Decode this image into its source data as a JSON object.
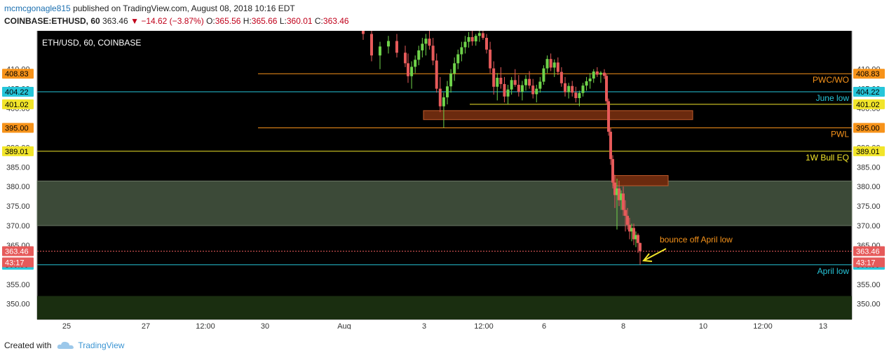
{
  "header": {
    "user": "mcmcgonagle815",
    "published_text": "published on TradingView.com, August 08, 2018 10:16 EDT",
    "symbol": "COINBASE:ETHUSD, 60",
    "last": "363.46",
    "change": "−14.62 (−3.87%)",
    "o_label": "O:",
    "o": "365.56",
    "h_label": "H:",
    "h": "365.66",
    "l_label": "L:",
    "l": "360.01",
    "c_label": "C:",
    "c": "363.46"
  },
  "footer": {
    "created_with": "Created with",
    "brand": "TradingView",
    "logo_icon": "cloud-icon"
  },
  "colors": {
    "background": "#000000",
    "orange_level": "#f7931a",
    "cyan_level": "#26c6da",
    "yellow_level": "#f2e52a",
    "zone_fill": "#3c4a38",
    "bottom_zone_fill": "#1a2e10",
    "supply_box": "#6b2a0e",
    "candle_up": "#6fd34a",
    "candle_down": "#e65a5a"
  },
  "chart_data": {
    "type": "candlestick",
    "title": "ETH/USD, 60, COINBASE",
    "ylim": [
      346,
      419.8
    ],
    "y_ticks": [
      350,
      355,
      360,
      365,
      370,
      375,
      380,
      385,
      390,
      395,
      400,
      405,
      410
    ],
    "x_ticks": [
      "25",
      "27",
      "12:00",
      "30",
      "Aug",
      "3",
      "12:00",
      "6",
      "8",
      "10",
      "12:00",
      "13"
    ],
    "current_price": "363.46",
    "countdown": "43:17",
    "levels": [
      {
        "label": "PWC/WO",
        "price": 408.83,
        "price_label": "408.83",
        "color": "orange"
      },
      {
        "label": "June low",
        "price": 404.22,
        "price_label": "404.22",
        "color": "cyan"
      },
      {
        "label": "",
        "price": 401.02,
        "price_label": "401.02",
        "color": "yellow"
      },
      {
        "label": "PWL",
        "price": 395.0,
        "price_label": "395.00",
        "color": "orange"
      },
      {
        "label": "1W Bull EQ",
        "price": 389.01,
        "price_label": "389.01",
        "color": "yellow"
      },
      {
        "label": "April low",
        "price": 360.0,
        "price_label": "360.00",
        "color": "cyan"
      }
    ],
    "zones": [
      {
        "from": 370.0,
        "to": 381.4,
        "kind": "range"
      },
      {
        "from": 345.2,
        "to": 352.0,
        "kind": "bottom"
      }
    ],
    "supply_boxes": [
      {
        "from": 397.1,
        "to": 399.4
      },
      {
        "from": 380.2,
        "to": 382.8
      }
    ],
    "annotation": "bounce off April low",
    "candles": [
      [
        420.0,
        421.0,
        417.5,
        419.0
      ],
      [
        419.0,
        420.5,
        412.0,
        413.5
      ],
      [
        413.5,
        417.0,
        410.0,
        415.8
      ],
      [
        415.8,
        418.5,
        414.0,
        417.2
      ],
      [
        417.2,
        419.0,
        413.0,
        414.2
      ],
      [
        414.2,
        416.0,
        410.5,
        411.5
      ],
      [
        411.5,
        414.0,
        406.5,
        408.2
      ],
      [
        408.2,
        412.0,
        405.0,
        410.6
      ],
      [
        410.6,
        413.5,
        409.0,
        412.4
      ],
      [
        412.4,
        416.0,
        411.0,
        414.8
      ],
      [
        414.8,
        418.0,
        413.0,
        416.5
      ],
      [
        416.5,
        419.0,
        413.5,
        417.8
      ],
      [
        417.8,
        420.0,
        415.0,
        416.0
      ],
      [
        416.0,
        418.0,
        411.0,
        412.2
      ],
      [
        412.2,
        414.0,
        404.0,
        405.0
      ],
      [
        405.0,
        408.0,
        399.0,
        400.5
      ],
      [
        400.5,
        404.0,
        395.0,
        402.8
      ],
      [
        402.8,
        407.0,
        401.0,
        405.6
      ],
      [
        405.6,
        410.0,
        404.0,
        408.9
      ],
      [
        408.9,
        413.0,
        407.0,
        411.5
      ],
      [
        411.5,
        415.0,
        410.0,
        413.8
      ],
      [
        413.8,
        417.0,
        412.0,
        415.6
      ],
      [
        415.6,
        418.5,
        414.0,
        417.0
      ],
      [
        417.0,
        419.5,
        415.5,
        418.2
      ],
      [
        418.2,
        420.0,
        416.0,
        417.1
      ],
      [
        417.1,
        419.0,
        416.0,
        418.5
      ],
      [
        418.5,
        420.0,
        417.0,
        419.2
      ],
      [
        419.2,
        420.5,
        417.5,
        418.0
      ],
      [
        418.0,
        419.0,
        414.0,
        415.0
      ],
      [
        415.0,
        417.0,
        409.0,
        410.2
      ],
      [
        410.2,
        412.0,
        403.5,
        405.5
      ],
      [
        405.5,
        409.0,
        402.0,
        407.8
      ],
      [
        407.8,
        410.5,
        405.0,
        406.2
      ],
      [
        406.2,
        408.0,
        401.5,
        403.0
      ],
      [
        403.0,
        406.0,
        401.0,
        404.8
      ],
      [
        404.8,
        408.0,
        403.5,
        407.2
      ],
      [
        407.2,
        410.0,
        405.5,
        406.0
      ],
      [
        406.0,
        408.5,
        403.0,
        404.2
      ],
      [
        404.2,
        407.0,
        402.0,
        405.9
      ],
      [
        405.9,
        408.5,
        404.5,
        407.5
      ],
      [
        407.5,
        409.5,
        405.0,
        405.8
      ],
      [
        405.8,
        407.5,
        402.5,
        403.6
      ],
      [
        403.6,
        406.0,
        401.5,
        405.0
      ],
      [
        405.0,
        408.0,
        404.0,
        406.8
      ],
      [
        406.8,
        411.0,
        406.0,
        410.2
      ],
      [
        410.2,
        413.5,
        409.0,
        412.6
      ],
      [
        412.6,
        414.0,
        409.5,
        410.4
      ],
      [
        410.4,
        412.5,
        408.0,
        411.7
      ],
      [
        411.7,
        413.0,
        408.5,
        409.3
      ],
      [
        409.3,
        410.5,
        405.5,
        406.4
      ],
      [
        406.4,
        408.0,
        403.0,
        404.1
      ],
      [
        404.1,
        406.5,
        402.5,
        405.7
      ],
      [
        405.7,
        407.0,
        403.0,
        404.0
      ],
      [
        404.0,
        405.5,
        401.5,
        402.6
      ],
      [
        402.6,
        404.5,
        400.5,
        403.9
      ],
      [
        403.9,
        406.5,
        403.0,
        405.8
      ],
      [
        405.8,
        408.0,
        404.5,
        406.9
      ],
      [
        406.9,
        409.0,
        405.0,
        407.6
      ],
      [
        407.6,
        410.0,
        406.5,
        409.4
      ],
      [
        409.4,
        410.5,
        408.0,
        408.6
      ],
      [
        408.6,
        409.5,
        406.5,
        409.1
      ],
      [
        409.1,
        410.0,
        407.5,
        408.3
      ],
      [
        408.3,
        408.8,
        401.0,
        401.8
      ],
      [
        401.8,
        402.5,
        393.0,
        394.0
      ],
      [
        394.0,
        395.0,
        385.5,
        387.0
      ],
      [
        387.0,
        388.0,
        379.5,
        381.0
      ],
      [
        381.0,
        383.0,
        374.5,
        377.8
      ],
      [
        377.8,
        382.0,
        369.0,
        379.5
      ],
      [
        379.5,
        381.5,
        375.0,
        376.5
      ],
      [
        376.5,
        379.0,
        374.0,
        378.2
      ],
      [
        378.2,
        380.0,
        372.5,
        374.0
      ],
      [
        374.0,
        376.5,
        368.5,
        372.5
      ],
      [
        372.5,
        374.5,
        369.0,
        370.2
      ],
      [
        370.2,
        372.0,
        366.5,
        368.5
      ],
      [
        368.5,
        370.5,
        366.0,
        369.4
      ],
      [
        369.4,
        370.5,
        365.0,
        366.5
      ],
      [
        366.5,
        368.5,
        364.5,
        367.6
      ],
      [
        367.6,
        368.0,
        363.0,
        365.56
      ],
      [
        365.56,
        365.66,
        360.01,
        363.46
      ]
    ]
  }
}
